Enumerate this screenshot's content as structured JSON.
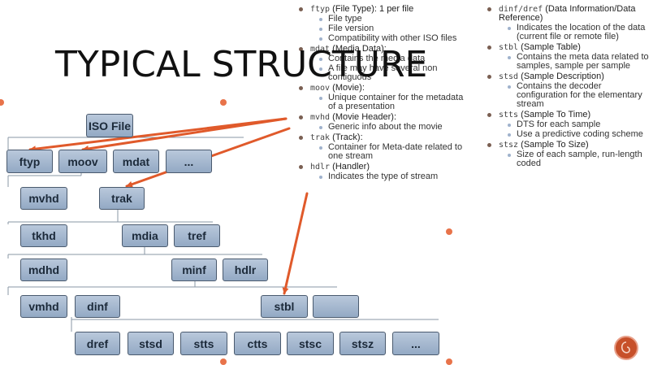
{
  "title": "TYPICAL STRUCTURE",
  "tree": {
    "root": "ISO File",
    "level1": [
      "ftyp",
      "moov",
      "mdat",
      "..."
    ],
    "level2": [
      "mvhd",
      "trak"
    ],
    "level3": [
      "tkhd",
      "mdia",
      "tref"
    ],
    "level4": [
      "mdhd",
      "minf",
      "hdlr"
    ],
    "level5": [
      "vmhd",
      "dinf",
      "stbl",
      ""
    ],
    "level6": [
      "dref",
      "stsd",
      "stts",
      "ctts",
      "stsc",
      "stsz",
      "..."
    ]
  },
  "col1": [
    {
      "code": "ftyp",
      "desc": " (File Type): 1 per file",
      "subs": [
        "File type",
        "File version",
        "Compatibility with other ISO files"
      ]
    },
    {
      "code": "mdat",
      "desc": " (Media Data):",
      "subs": [
        "Contains the media data",
        "A file may have several non contiguous"
      ]
    },
    {
      "code": "moov",
      "desc": " (Movie):",
      "subs": [
        "Unique container for the metadata of a presentation"
      ]
    },
    {
      "code": "mvhd",
      "desc": " (Movie Header):",
      "subs": [
        "Generic info about the movie"
      ]
    },
    {
      "code": "trak",
      "desc": " (Track):",
      "subs": [
        "Container for Meta-date related to one stream"
      ]
    },
    {
      "code": "hdlr",
      "desc": " (Handler)",
      "subs": [
        "Indicates the type of stream"
      ]
    }
  ],
  "col2": [
    {
      "code": "dinf/dref",
      "desc": " (Data Information/Data Reference)",
      "subs": [
        "Indicates the location of the data (current file or remote file)"
      ]
    },
    {
      "code": "stbl",
      "desc": " (Sample Table)",
      "subs": [
        "Contains the meta data related to samples, sample per sample"
      ]
    },
    {
      "code": "stsd",
      "desc": " (Sample Description)",
      "subs": [
        "Contains the decoder configuration for the elementary stream"
      ]
    },
    {
      "code": "stts",
      "desc": " (Sample To Time)",
      "subs": [
        "DTS for each sample",
        "Use a predictive coding scheme"
      ]
    },
    {
      "code": "stsz",
      "desc": " (Sample To Size)",
      "subs": [
        "Size of each sample, run-length coded"
      ]
    }
  ],
  "colors": {
    "accent": "#e8734a",
    "arrow": "#e05a2b",
    "box": "#a9bbd3"
  },
  "logo_icon": "brand-logo-icon"
}
